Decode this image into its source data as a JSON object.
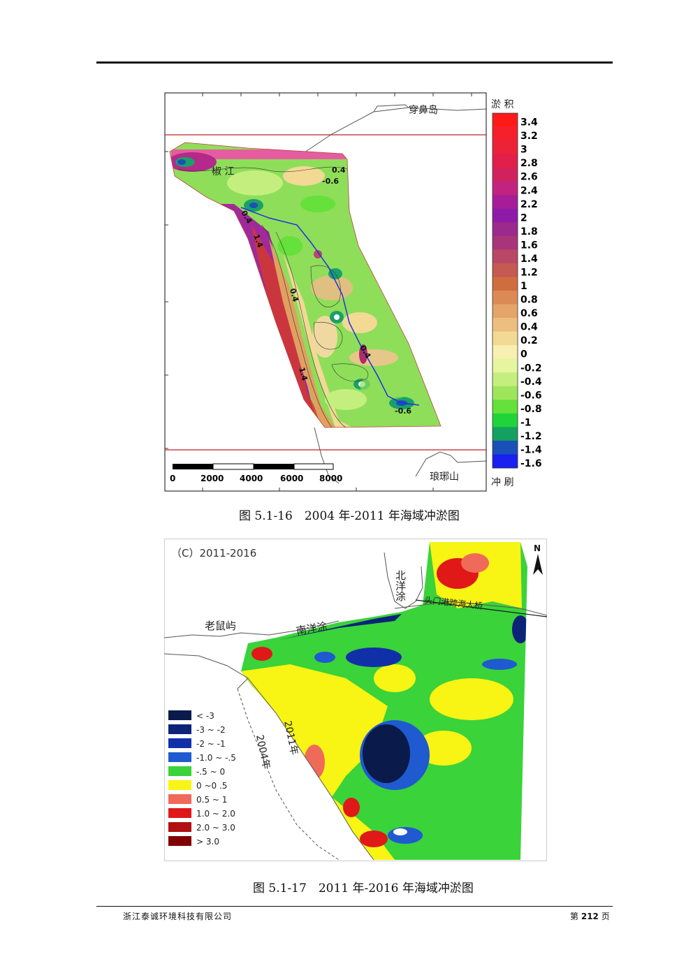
{
  "figure1": {
    "caption": "图 5.1-16　2004 年-2011 年海域冲淤图",
    "place_top": "穿鼻岛",
    "place_bottom": "琅琊山",
    "place_river": "椒 江",
    "legend_top": "淤 积",
    "legend_bottom": "冲 刷",
    "legend_values": [
      "3.4",
      "3.2",
      "3",
      "2.8",
      "2.6",
      "2.4",
      "2.2",
      "2",
      "1.8",
      "1.6",
      "1.4",
      "1.2",
      "1",
      "0.8",
      "0.6",
      "0.4",
      "0.2",
      "0",
      "-0.2",
      "-0.4",
      "-0.6",
      "-0.8",
      "-1",
      "-1.2",
      "-1.4",
      "-1.6"
    ],
    "legend_colors": [
      "#ff1a1a",
      "#f5202c",
      "#ec2238",
      "#e01f4a",
      "#d2225e",
      "#c02480",
      "#a61d9a",
      "#8f1aa8",
      "#9b2a8c",
      "#a8357a",
      "#b84866",
      "#c45a52",
      "#d06d3e",
      "#dc8a55",
      "#e4a46a",
      "#ecbf7f",
      "#f2d994",
      "#f8f0b0",
      "#e6f5a0",
      "#c4ef7e",
      "#9fe55c",
      "#66e03a",
      "#20d33a",
      "#14a060",
      "#1a50b8",
      "#1a20f0"
    ],
    "contour_labels": [
      "0.4",
      "-0.6",
      "0.4",
      "1.4",
      "0.4",
      "1.4",
      "0.4",
      "-0.6"
    ],
    "scale_labels": [
      "0",
      "2000",
      "4000",
      "6000",
      "8000"
    ]
  },
  "figure2": {
    "caption": "图 5.1-17　2011 年-2016 年海域冲淤图",
    "period_label": "（C）2011-2016",
    "north": "N",
    "places": [
      "北洋涂",
      "老鼠屿",
      "南洋涂",
      "头门港跨海大桥",
      "2011年",
      "2004年"
    ],
    "legend": [
      {
        "label": "< -3",
        "color": "#0a1a4a"
      },
      {
        "label": "-3 ~ -2",
        "color": "#0b2478"
      },
      {
        "label": "-2 ~ -1",
        "color": "#1030a8"
      },
      {
        "label": "-1.0 ~ -.5",
        "color": "#1f5ad0"
      },
      {
        "label": "-.5 ~ 0",
        "color": "#3ad33a"
      },
      {
        "label": "0 ~0 .5",
        "color": "#f8f414"
      },
      {
        "label": "0.5 ~ 1",
        "color": "#f06a5a"
      },
      {
        "label": "1.0 ~ 2.0",
        "color": "#e01818"
      },
      {
        "label": "2.0 ~ 3.0",
        "color": "#b01010"
      },
      {
        "label": "> 3.0",
        "color": "#800000"
      }
    ]
  },
  "footer": {
    "company": "浙江泰诚环境科技有限公司",
    "page_prefix": "第",
    "page_number": "212",
    "page_suffix": "页"
  }
}
